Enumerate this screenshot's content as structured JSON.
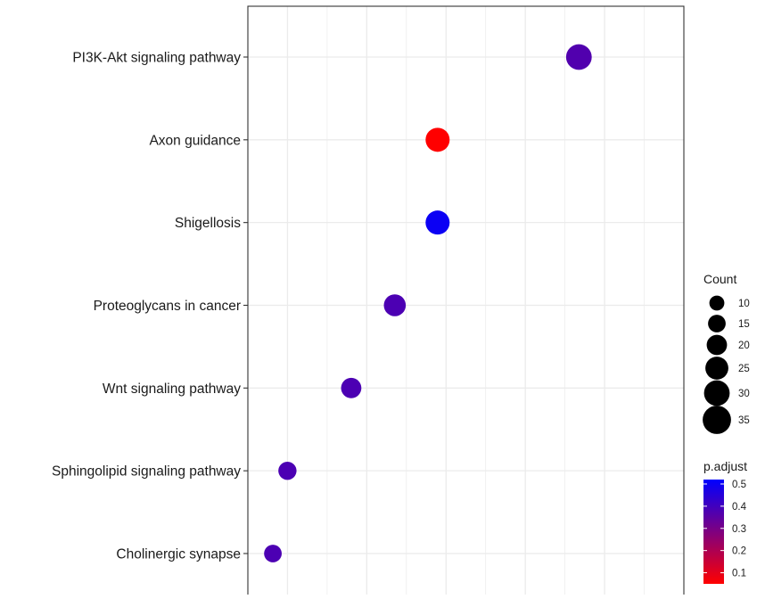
{
  "chart_data": {
    "type": "scatter",
    "subtype": "dotplot",
    "title": "",
    "xlabel": "",
    "ylabel": "",
    "grid": true,
    "legend_placement": "right",
    "categories": [
      "PI3K-Akt signaling pathway",
      "Axon guidance",
      "Shigellosis",
      "Proteoglycans in cancer",
      "Wnt signaling pathway",
      "Sphingolipid signaling pathway",
      "Cholinergic synapse"
    ],
    "points": [
      {
        "category": "PI3K-Akt signaling pathway",
        "x": 0.1035,
        "count": 30,
        "p_adjust": 0.37
      },
      {
        "category": "Axon guidance",
        "x": 0.086,
        "count": 27,
        "p_adjust": 0.05
      },
      {
        "category": "Shigellosis",
        "x": 0.086,
        "count": 27,
        "p_adjust": 0.5
      },
      {
        "category": "Proteoglycans in cancer",
        "x": 0.0807,
        "count": 23,
        "p_adjust": 0.38
      },
      {
        "category": "Wnt signaling pathway",
        "x": 0.0753,
        "count": 20,
        "p_adjust": 0.38
      },
      {
        "category": "Sphingolipid signaling pathway",
        "x": 0.0674,
        "count": 16,
        "p_adjust": 0.38
      },
      {
        "category": "Cholinergic synapse",
        "x": 0.0656,
        "count": 15,
        "p_adjust": 0.38
      }
    ],
    "xlim": [
      0.0625,
      0.1165
    ],
    "count_legend": {
      "title": "Count",
      "values": [
        10,
        15,
        20,
        25,
        30,
        35
      ]
    },
    "color_legend": {
      "title": "p.adjust",
      "ticks": [
        0.5,
        0.4,
        0.3,
        0.2,
        0.1
      ],
      "ticks_labels": [
        "0.5",
        "0.4",
        "0.3",
        "0.2",
        "0.1"
      ],
      "range": [
        0.05,
        0.52
      ],
      "low_color": "#ff0000",
      "high_color": "#0000ff"
    },
    "colors": {
      "grid": "#ebebeb",
      "panel_border": "#333333",
      "point_low": "#ff0000",
      "point_high": "#0000ff"
    }
  }
}
